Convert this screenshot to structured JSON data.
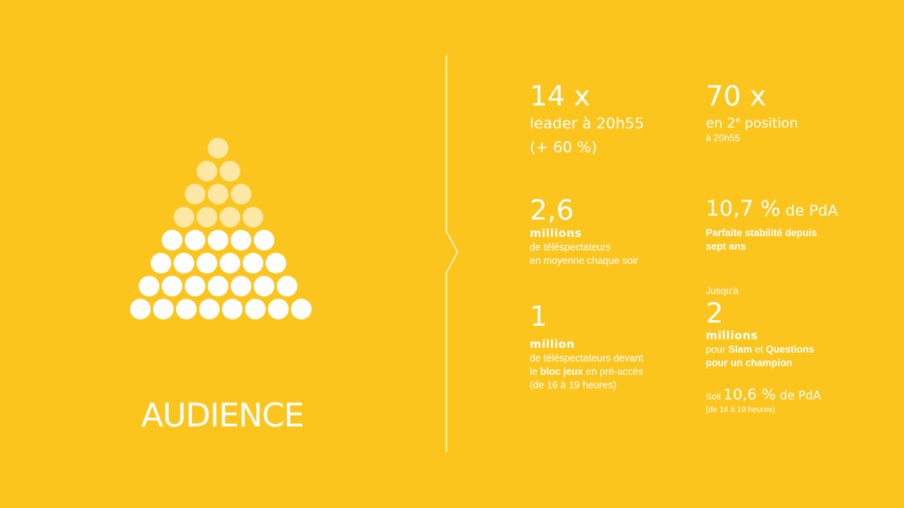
{
  "title": "AUDIENCE",
  "stats": {
    "s1": {
      "big": "14 x",
      "line1": "leader à 20h55",
      "line2": "(+ 60 %)"
    },
    "s2": {
      "big": "70 x",
      "line1_pre": "en 2",
      "line1_sup": "e",
      "line1_post": " position",
      "line2": "à 20h55"
    },
    "s3": {
      "big": "2,6",
      "unit": "millions",
      "line1": "de téléspectateurs",
      "line2": "en moyenne chaque soir"
    },
    "s4": {
      "big": "10,7 %",
      "big_suffix": " de PdA",
      "line1": "Parfaite stabilité depuis",
      "line2": "sept ans"
    },
    "s5": {
      "big": "1",
      "unit": "million",
      "line1": "de téléspectateurs devant",
      "line2_pre": "le ",
      "line2_bold": "bloc jeux",
      "line2_post": " en pré-accès",
      "line3": "(de 16 à 19 heures)"
    },
    "s6": {
      "pre": "Jusqu'à",
      "big": "2",
      "unit": "millions",
      "line1_pre": "pour ",
      "line1_bold1": "Slam",
      "line1_mid": " et ",
      "line1_bold2": "Questions",
      "line2": "pour un champion",
      "soit_pre": "Soit ",
      "soit_big": "10,6 %",
      "soit_suffix": " de PdA",
      "soit_note": "(de 16 à 19 heures)"
    }
  }
}
